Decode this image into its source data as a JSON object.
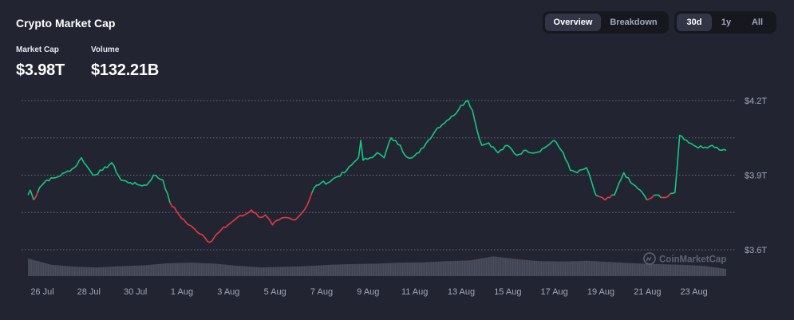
{
  "header": {
    "title": "Crypto Market Cap",
    "market_cap_label": "Market Cap",
    "market_cap_value": "$3.98T",
    "volume_label": "Volume",
    "volume_value": "$132.21B"
  },
  "view_toggle": {
    "overview": "Overview",
    "breakdown": "Breakdown",
    "active": "Overview"
  },
  "range_toggle": {
    "d30": "30d",
    "y1": "1y",
    "all": "All",
    "active": "30d"
  },
  "watermark": "CoinMarketCap",
  "colors": {
    "up": "#16c784",
    "down": "#ea3943",
    "background": "#222531",
    "grid": "#858ca2",
    "volume": "#6b6f7e"
  },
  "chart_data": {
    "type": "line",
    "title": "",
    "xlabel": "",
    "ylabel": "",
    "y_unit": "T",
    "ylim": [
      3.6,
      4.2
    ],
    "yticks": [
      3.6,
      3.9,
      4.2
    ],
    "ytick_labels": [
      "$3.6T",
      "$3.9T",
      "$4.2T"
    ],
    "grid": "horizontal dotted",
    "x_tick_labels": [
      "26 Jul",
      "28 Jul",
      "30 Jul",
      "1 Aug",
      "3 Aug",
      "5 Aug",
      "7 Aug",
      "9 Aug",
      "11 Aug",
      "13 Aug",
      "15 Aug",
      "17 Aug",
      "19 Aug",
      "21 Aug",
      "23 Aug"
    ],
    "x_tick_days": [
      0,
      2,
      4,
      6,
      8,
      10,
      12,
      14,
      16,
      18,
      20,
      22,
      24,
      26,
      28
    ],
    "series": [
      {
        "x": [
          0.0,
          0.1,
          0.25,
          0.5,
          0.8,
          1.2,
          1.6,
          2.0,
          2.3,
          2.5,
          2.8,
          3.2,
          3.6,
          4.0,
          4.4,
          4.8,
          5.1,
          5.4,
          5.8,
          6.1,
          6.5,
          6.9,
          7.2,
          7.5,
          7.8,
          8.2,
          8.6,
          9.0,
          9.3,
          9.6,
          10.0,
          10.2,
          10.5,
          10.8,
          11.1,
          11.4,
          11.7,
          12.0,
          12.3,
          12.6,
          12.9,
          13.2,
          13.6,
          13.9,
          14.2,
          14.3,
          14.4,
          14.7,
          15.0,
          15.3,
          15.6,
          16.0,
          16.2,
          16.5,
          16.8,
          17.2,
          17.6,
          18.0,
          18.3,
          18.6,
          18.9,
          19.1,
          19.3,
          19.5,
          19.8,
          20.2,
          20.6,
          21.0,
          21.4,
          21.8,
          22.2,
          22.6,
          23.0,
          23.3,
          23.6,
          24.0,
          24.4,
          24.8,
          25.2,
          25.6,
          25.9,
          26.3,
          26.6,
          27.0,
          27.4,
          27.8,
          28.0,
          28.3,
          28.6,
          29.0,
          29.4,
          29.8,
          30.0
        ],
        "y": [
          3.82,
          3.84,
          3.8,
          3.85,
          3.88,
          3.89,
          3.91,
          3.93,
          3.97,
          3.94,
          3.9,
          3.92,
          3.95,
          3.88,
          3.87,
          3.86,
          3.86,
          3.9,
          3.88,
          3.79,
          3.74,
          3.7,
          3.68,
          3.66,
          3.63,
          3.67,
          3.7,
          3.73,
          3.74,
          3.76,
          3.73,
          3.74,
          3.7,
          3.72,
          3.73,
          3.72,
          3.74,
          3.78,
          3.85,
          3.87,
          3.87,
          3.89,
          3.91,
          3.94,
          3.97,
          4.04,
          3.96,
          3.97,
          3.99,
          3.97,
          4.05,
          4.02,
          3.98,
          3.97,
          3.99,
          4.04,
          4.09,
          4.12,
          4.14,
          4.18,
          4.2,
          4.16,
          4.08,
          4.02,
          4.03,
          3.99,
          4.02,
          3.98,
          4.0,
          3.99,
          4.01,
          4.04,
          3.99,
          3.92,
          3.91,
          3.93,
          3.82,
          3.8,
          3.82,
          3.91,
          3.87,
          3.84,
          3.8,
          3.82,
          3.81,
          3.83,
          4.06,
          4.04,
          4.02,
          4.01,
          4.02,
          4.0,
          4.0
        ],
        "color_rule": "green at or above start value, red below"
      }
    ],
    "volume": {
      "x": [
        0,
        1,
        2,
        3,
        4,
        5,
        6,
        7,
        8,
        9,
        10,
        11,
        12,
        13,
        14,
        15,
        16,
        17,
        18,
        19,
        20,
        21,
        22,
        23,
        24,
        25,
        26,
        27,
        28,
        29,
        30
      ],
      "values": [
        0.85,
        0.55,
        0.45,
        0.42,
        0.48,
        0.52,
        0.62,
        0.65,
        0.6,
        0.5,
        0.42,
        0.45,
        0.48,
        0.55,
        0.58,
        0.6,
        0.65,
        0.66,
        0.72,
        0.76,
        0.95,
        0.82,
        0.72,
        0.7,
        0.74,
        0.68,
        0.62,
        0.58,
        0.55,
        0.5,
        0.35
      ]
    }
  }
}
